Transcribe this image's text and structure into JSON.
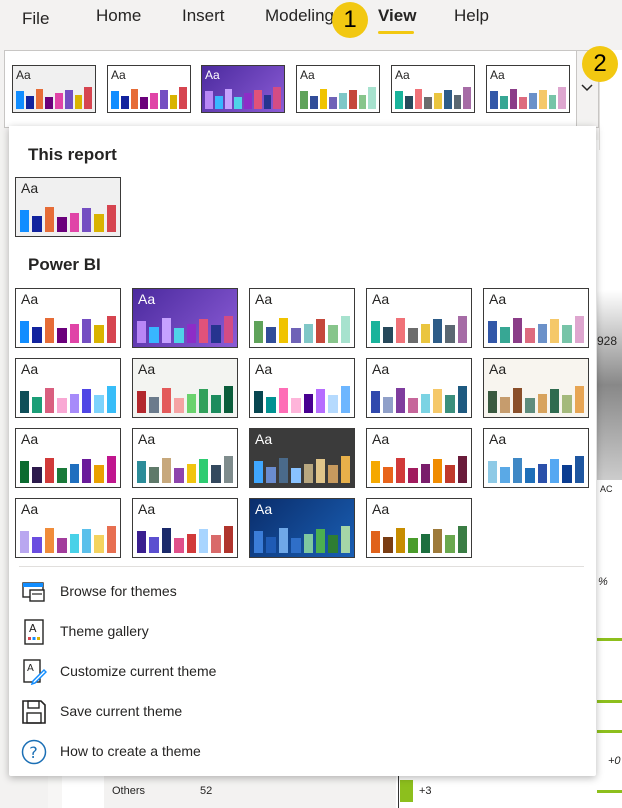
{
  "menu": {
    "items": [
      "File",
      "Home",
      "Insert",
      "Modeling",
      "View",
      "Help"
    ],
    "active": "View"
  },
  "callouts": [
    "1",
    "2"
  ],
  "panel": {
    "this_report_title": "This report",
    "powerbi_title": "Power BI",
    "actions": [
      {
        "label": "Browse for themes",
        "icon": "browse-themes-icon"
      },
      {
        "label": "Theme gallery",
        "icon": "theme-gallery-icon"
      },
      {
        "label": "Customize current theme",
        "icon": "customize-theme-icon"
      },
      {
        "label": "Save current theme",
        "icon": "save-theme-icon"
      },
      {
        "label": "How to create a theme",
        "icon": "help-icon"
      }
    ]
  },
  "thumb_label": "Aa",
  "themes": {
    "default": {
      "bg": "#ffffff",
      "dark": false,
      "colors": [
        "#118dff",
        "#12239e",
        "#e66c37",
        "#6b007b",
        "#e044a7",
        "#744ec2",
        "#d9b300",
        "#d64550"
      ]
    },
    "current": {
      "bg": "#f0f0f0",
      "dark": false,
      "colors": [
        "#118dff",
        "#12239e",
        "#e66c37",
        "#6b007b",
        "#e044a7",
        "#744ec2",
        "#d9b300",
        "#d64550"
      ]
    },
    "innovate": {
      "bg": "#6a3fb5",
      "dark": true,
      "colors": [
        "#b887f5",
        "#38b6ff",
        "#c6a1ff",
        "#4fd3e8",
        "#8d2dc7",
        "#e0527a",
        "#26348f",
        "#d34c84"
      ]
    },
    "executive": {
      "bg": "#ffffff",
      "dark": false,
      "colors": [
        "#5fa35a",
        "#314d99",
        "#f0c300",
        "#6f63b7",
        "#80c7c7",
        "#c5483b",
        "#87c58b",
        "#a7e2ce"
      ]
    },
    "frontier": {
      "bg": "#ffffff",
      "dark": false,
      "colors": [
        "#19b39b",
        "#27495b",
        "#f07278",
        "#6c6c6c",
        "#eac53f",
        "#2d5c88",
        "#5b6872",
        "#a66ca6"
      ]
    },
    "highrise": {
      "bg": "#ffffff",
      "dark": false,
      "colors": [
        "#3257a8",
        "#37a794",
        "#8b3d88",
        "#dd6b7f",
        "#6b91c9",
        "#f5c869",
        "#77c4a8",
        "#dea6cf"
      ]
    },
    "city_park": {
      "bg": "#ffffff",
      "dark": false,
      "colors": [
        "#0f4f59",
        "#1b9e77",
        "#d95f7f",
        "#f9a8d4",
        "#a78bfa",
        "#4f46e5",
        "#7dd3fc",
        "#38bdf8"
      ]
    },
    "classroom": {
      "bg": "#f3f4f1",
      "dark": false,
      "colors": [
        "#b3282d",
        "#6b7b8c",
        "#e35a5a",
        "#f5a3a3",
        "#6ad26d",
        "#31a05b",
        "#1c8c5e",
        "#0b5d3b"
      ]
    },
    "colorblind": {
      "bg": "#ffffff",
      "dark": false,
      "colors": [
        "#074650",
        "#009292",
        "#fe6db6",
        "#feb5da",
        "#480091",
        "#b66dff",
        "#b5dafe",
        "#6db6ff"
      ]
    },
    "electric": {
      "bg": "#ffffff",
      "dark": false,
      "colors": [
        "#3049ad",
        "#90a0c9",
        "#7f3d9e",
        "#c6669a",
        "#7bd3e3",
        "#f5c869",
        "#3b8f7c",
        "#1e5a80"
      ]
    },
    "high_contrast": {
      "bg": "#f8f5ef",
      "dark": false,
      "colors": [
        "#3a5a40",
        "#c69c6d",
        "#8a4f2a",
        "#5e8c7c",
        "#d8a35d",
        "#2f6b4f",
        "#a4b97b",
        "#e7a553"
      ]
    },
    "sunset": {
      "bg": "#ffffff",
      "dark": false,
      "colors": [
        "#0b6b2f",
        "#2c1a4c",
        "#d13a3a",
        "#1a7a3a",
        "#1f6fbf",
        "#6a1b9a",
        "#eaa000",
        "#c0168e"
      ]
    },
    "twilight": {
      "bg": "#ffffff",
      "dark": false,
      "colors": [
        "#2c8c99",
        "#5f7a6a",
        "#c7a87c",
        "#8e44ad",
        "#f1c40f",
        "#2ecc71",
        "#34495e",
        "#7f8c8d"
      ]
    },
    "storm": {
      "bg": "#3a3a3a",
      "dark": true,
      "colors": [
        "#3fa7ff",
        "#6a8ccf",
        "#4a6a8a",
        "#89c2ff",
        "#b8a77f",
        "#e0c58a",
        "#c79a5e",
        "#e8b04a"
      ]
    },
    "solar": {
      "bg": "#ffffff",
      "dark": false,
      "colors": [
        "#f5a800",
        "#e8641b",
        "#d13a3a",
        "#a11c5e",
        "#7a1d6b",
        "#f08c00",
        "#c0392b",
        "#6a1b3a"
      ]
    },
    "ocean": {
      "bg": "#ffffff",
      "dark": false,
      "colors": [
        "#8ecae6",
        "#5aa9e6",
        "#3f88c5",
        "#1e6fb9",
        "#2b50aa",
        "#54a8f2",
        "#0b3d91",
        "#1e56a0"
      ]
    },
    "tidal": {
      "bg": "#ffffff",
      "dark": false,
      "colors": [
        "#b9a7f0",
        "#6a4de0",
        "#f08c3a",
        "#a23c9c",
        "#48d1e8",
        "#5bc0eb",
        "#f4d35e",
        "#e76f51"
      ]
    },
    "temperature": {
      "bg": "#ffffff",
      "dark": false,
      "colors": [
        "#3a1f8f",
        "#5b4fd0",
        "#1b2a6b",
        "#e0508a",
        "#d13a3a",
        "#a8d5ff",
        "#d96a6a",
        "#b0342d"
      ]
    },
    "accessible_tidal": {
      "bg": "#0a2d6b",
      "dark": true,
      "colors": [
        "#3b7dd8",
        "#1f5bb5",
        "#6fa8e8",
        "#2f6fc8",
        "#7ec8a0",
        "#4caf50",
        "#2e7d32",
        "#a5d6a7"
      ]
    },
    "earth": {
      "bg": "#ffffff",
      "dark": false,
      "colors": [
        "#e0621b",
        "#7a3d13",
        "#c78d00",
        "#4a9c2b",
        "#1d6f3f",
        "#9e7a3a",
        "#6aa84f",
        "#3a7d44"
      ]
    }
  },
  "ribbon_themes": [
    "current",
    "default",
    "innovate",
    "executive",
    "frontier",
    "highrise"
  ],
  "this_report_themes": [
    "current"
  ],
  "powerbi_grid": [
    [
      "default",
      "innovate",
      "executive",
      "frontier",
      "highrise"
    ],
    [
      "city_park",
      "classroom",
      "colorblind",
      "electric",
      "high_contrast"
    ],
    [
      "sunset",
      "twilight",
      "storm",
      "solar",
      "ocean"
    ],
    [
      "tidal",
      "temperature",
      "accessible_tidal",
      "earth"
    ]
  ],
  "background": {
    "texts": [
      "928",
      "AC",
      "%",
      "Others",
      "52",
      "+3",
      "+0"
    ]
  }
}
